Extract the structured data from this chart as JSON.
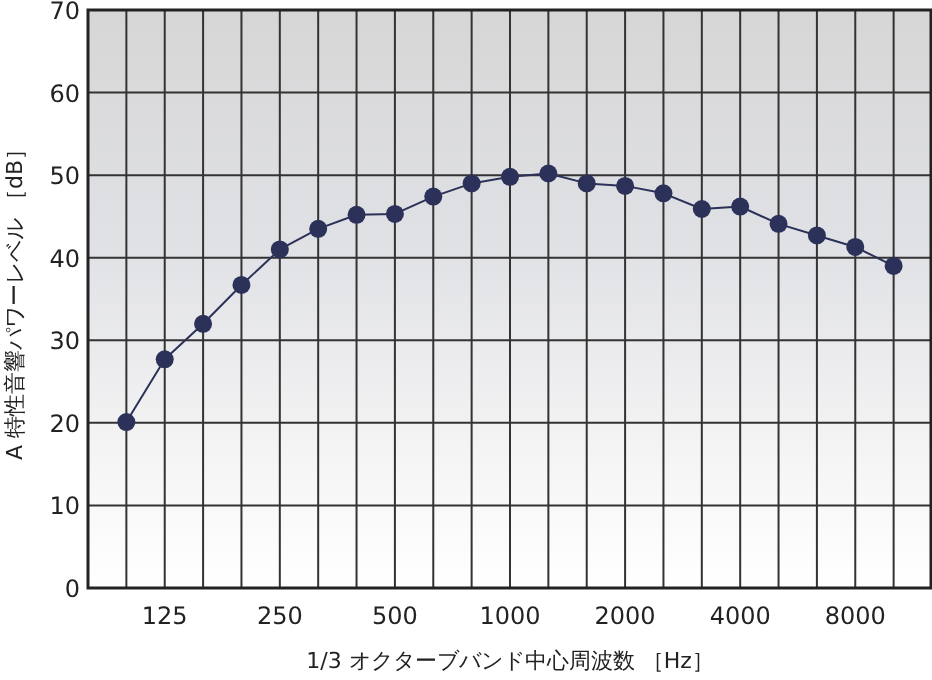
{
  "chart_data": {
    "type": "line",
    "xlabel": "1/3 オクターブバンド中心周波数 ［Hz］",
    "ylabel": "A 特性音響パワーレベル ［dB］",
    "categories": [
      null,
      "125",
      null,
      null,
      "250",
      null,
      null,
      "500",
      null,
      null,
      "1000",
      null,
      null,
      "2000",
      null,
      null,
      "4000",
      null,
      null,
      "8000",
      null
    ],
    "series": [
      {
        "color": "#2b3158",
        "values": [
          20.1,
          27.7,
          32.0,
          36.7,
          41.0,
          43.5,
          45.2,
          45.3,
          47.4,
          49.0,
          49.8,
          50.2,
          49.0,
          48.7,
          47.8,
          45.9,
          46.2,
          44.1,
          42.7,
          41.3,
          39.0
        ]
      }
    ],
    "ylim": [
      0,
      70
    ],
    "yticks": [
      0,
      10,
      20,
      30,
      40,
      50,
      60,
      70
    ],
    "grid": true,
    "marker": "circle",
    "line_style": "solid"
  }
}
